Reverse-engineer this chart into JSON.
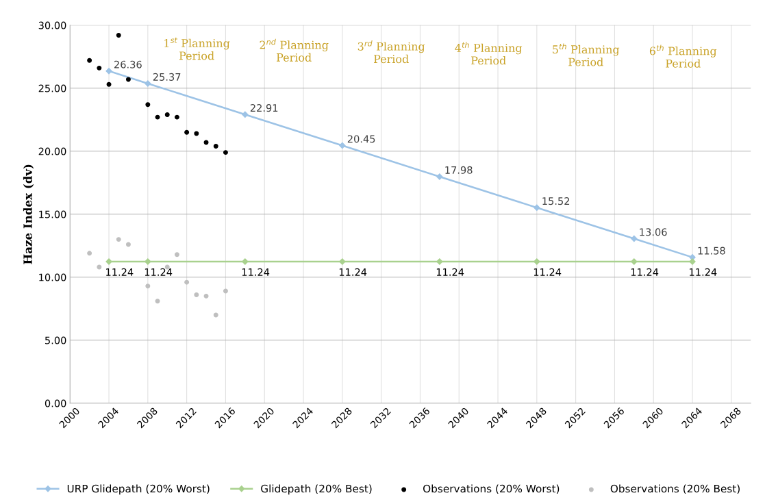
{
  "chart_data": {
    "type": "line",
    "ylabel": "Haze Index (dv)",
    "xlim": [
      2000,
      2070
    ],
    "xticks": [
      2000,
      2004,
      2008,
      2012,
      2016,
      2020,
      2024,
      2028,
      2032,
      2036,
      2040,
      2044,
      2048,
      2052,
      2056,
      2060,
      2064,
      2068
    ],
    "ylim": [
      0,
      30
    ],
    "yticks": [
      {
        "value": 0,
        "label": "0.00"
      },
      {
        "value": 5,
        "label": "5.00"
      },
      {
        "value": 10,
        "label": "10.00"
      },
      {
        "value": 15,
        "label": "15.00"
      },
      {
        "value": 20,
        "label": "20.00"
      },
      {
        "value": 25,
        "label": "25.00"
      },
      {
        "value": 30,
        "label": "30.00"
      }
    ],
    "grid": true,
    "legend": "bottom",
    "series": [
      {
        "name": "URP Glidepath (20% Worst)",
        "color": "#9dc3e6",
        "marker": "diamond",
        "x": [
          2004,
          2008,
          2018,
          2028,
          2038,
          2048,
          2058,
          2064
        ],
        "values": [
          26.36,
          25.37,
          22.91,
          20.45,
          17.98,
          15.52,
          13.06,
          11.58
        ],
        "value_labels": [
          "26.36",
          "25.37",
          "22.91",
          "20.45",
          "17.98",
          "15.52",
          "13.06",
          "11.58"
        ]
      },
      {
        "name": "Glidepath (20% Best)",
        "color": "#a9d18e",
        "marker": "diamond",
        "x": [
          2004,
          2008,
          2018,
          2028,
          2038,
          2048,
          2058,
          2064
        ],
        "values": [
          11.24,
          11.24,
          11.24,
          11.24,
          11.24,
          11.24,
          11.24,
          11.24
        ],
        "value_labels": [
          "11.24",
          "11.24",
          "11.24",
          "11.24",
          "11.24",
          "11.24",
          "11.24",
          "11.24"
        ]
      },
      {
        "name": "Observations (20% Worst)",
        "type": "scatter",
        "color": "#000000",
        "marker": "circle",
        "x": [
          2002,
          2003,
          2004,
          2005,
          2006,
          2008,
          2009,
          2010,
          2011,
          2012,
          2013,
          2014,
          2015,
          2016
        ],
        "values": [
          27.2,
          26.6,
          25.3,
          29.2,
          25.7,
          23.7,
          22.7,
          22.9,
          22.7,
          21.5,
          21.4,
          20.7,
          20.4,
          19.9
        ]
      },
      {
        "name": "Observations (20% Best)",
        "type": "scatter",
        "color": "#bfbfbf",
        "marker": "circle",
        "x": [
          2002,
          2003,
          2005,
          2006,
          2008,
          2009,
          2010,
          2011,
          2012,
          2013,
          2014,
          2015,
          2016
        ],
        "values": [
          11.9,
          10.8,
          13.0,
          12.6,
          9.3,
          8.1,
          10.8,
          11.8,
          9.6,
          8.6,
          8.5,
          7.0,
          8.9
        ]
      }
    ],
    "annotations": [
      "1$^{st}$ Planning\nPeriod",
      "2$^{nd}$ Planning\nPeriod",
      "3$^{rd}$ Planning\nPeriod",
      "4$^{th}$ Planning\nPeriod",
      "5$^{th}$ Planning\nPeriod",
      "6$^{th}$ Planning\nPeriod"
    ]
  }
}
